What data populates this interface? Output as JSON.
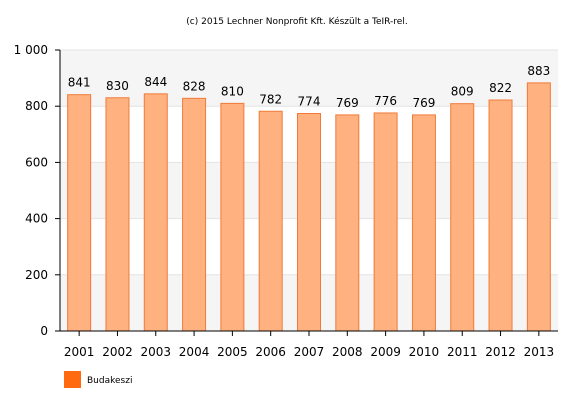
{
  "credit": "(c) 2015 Lechner Nonprofit Kft. Készült a TeIR-rel.",
  "colors": {
    "bar_fill": "#ffb27f",
    "bar_stroke": "#f07a3a",
    "legend_swatch": "#ff6a10",
    "plot_band": "#f5f5f5",
    "gridline": "#e4e4e4",
    "axis": "#000000"
  },
  "chart_data": {
    "type": "bar",
    "title": "",
    "xlabel": "",
    "ylabel": "",
    "categories": [
      "2001",
      "2002",
      "2003",
      "2004",
      "2005",
      "2006",
      "2007",
      "2008",
      "2009",
      "2010",
      "2011",
      "2012",
      "2013"
    ],
    "series": [
      {
        "name": "Budakeszi",
        "values": [
          841,
          830,
          844,
          828,
          810,
          782,
          774,
          769,
          776,
          769,
          809,
          822,
          883
        ],
        "labels": [
          "841",
          "830",
          "844",
          "828",
          "810",
          "782",
          "774",
          "769",
          "776",
          "769",
          "809",
          "822",
          "883"
        ]
      }
    ],
    "ylim": [
      0,
      1000
    ],
    "yticks": [
      0,
      200,
      400,
      600,
      800,
      1000
    ],
    "ytick_labels": [
      "0",
      "200",
      "400",
      "600",
      "800",
      "1 000"
    ],
    "grid": true,
    "legend_position": "bottom-left"
  }
}
